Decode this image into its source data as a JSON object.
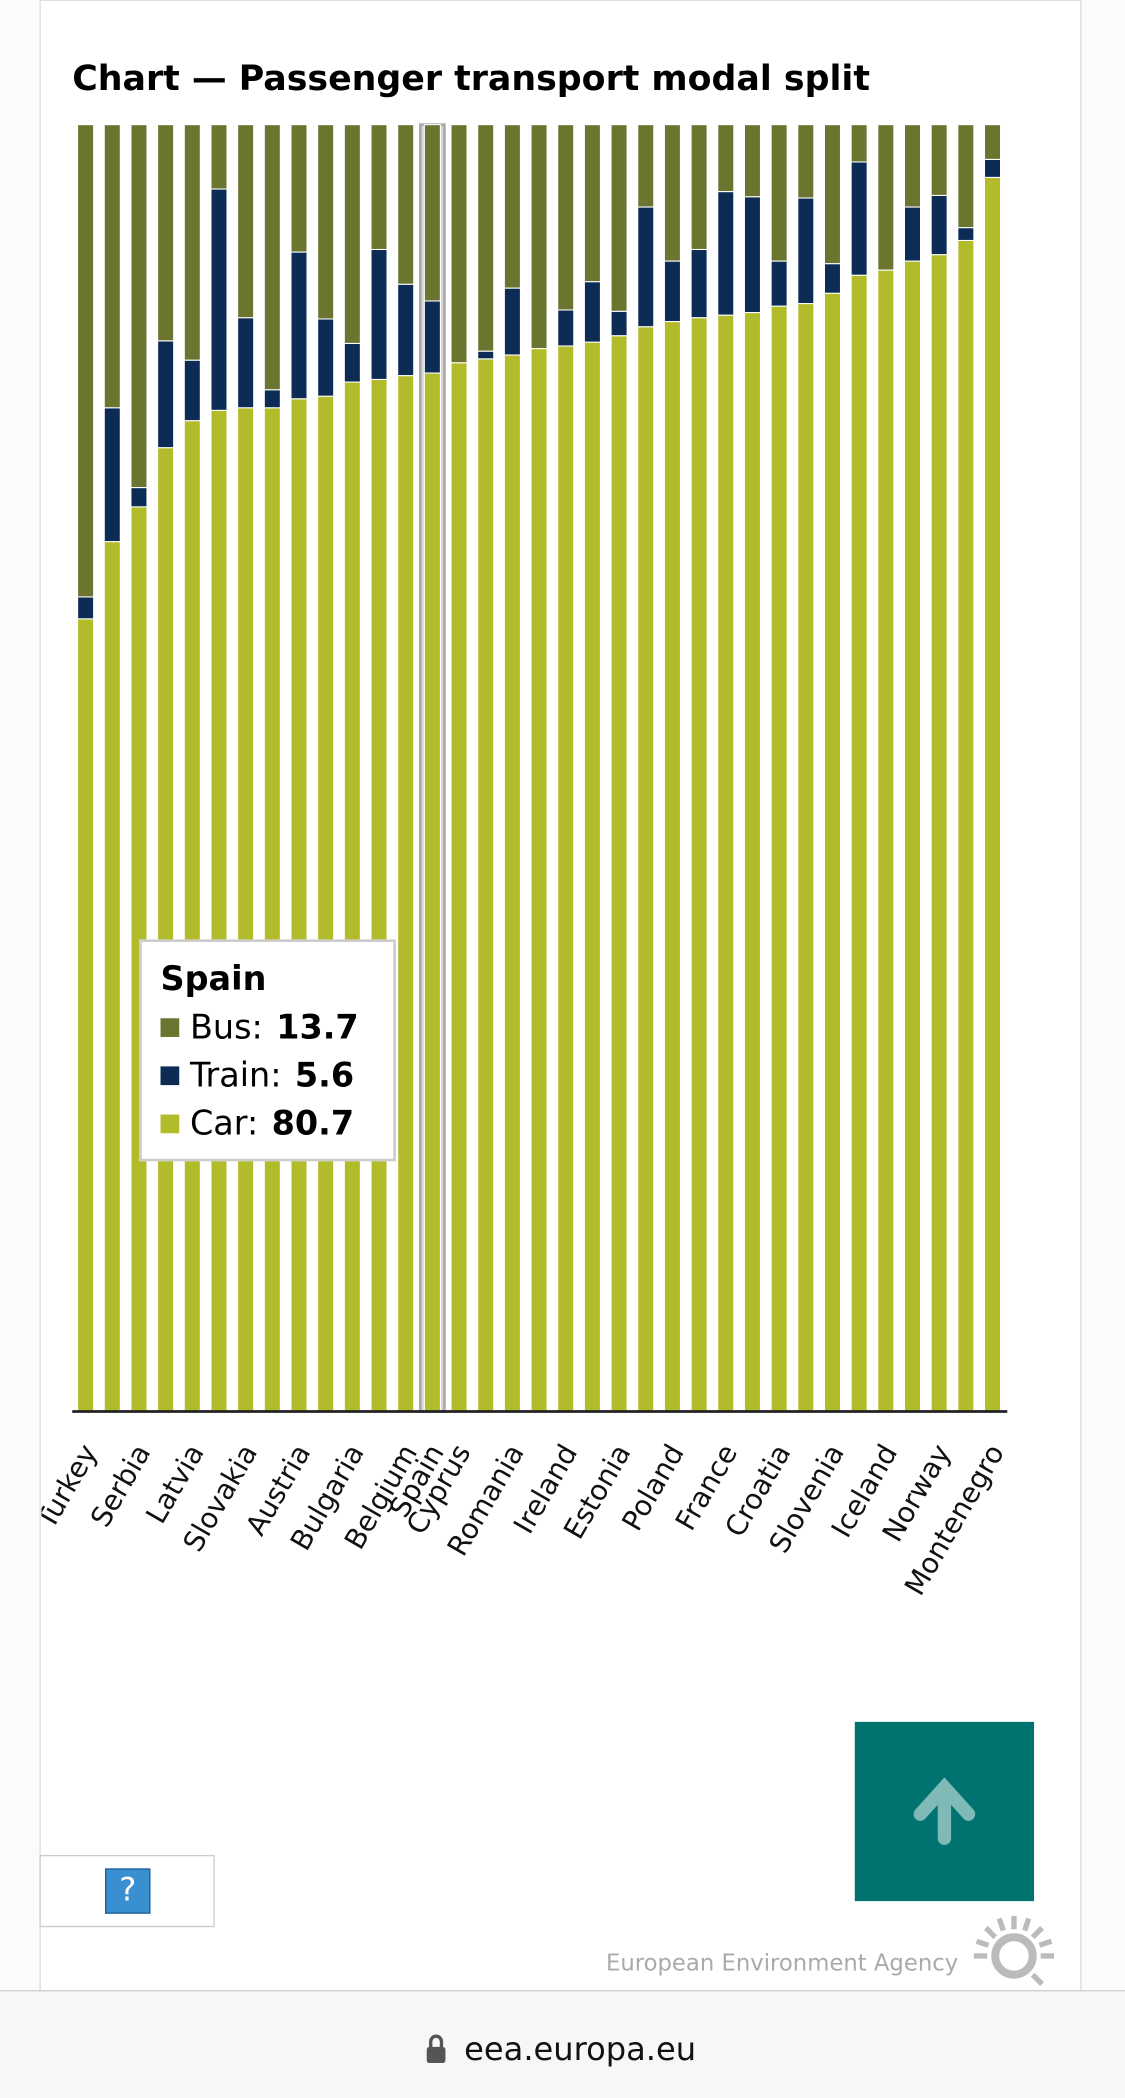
{
  "chart_data": {
    "type": "stacked_bar",
    "title": "Chart — Passenger transport modal split",
    "categories": [
      "Turkey",
      null,
      "Serbia",
      null,
      "Latvia",
      null,
      "Slovakia",
      null,
      "Austria",
      null,
      "Bulgaria",
      null,
      "Belgium",
      "Spain",
      "Cyprus",
      null,
      "Romania",
      null,
      "Ireland",
      null,
      "Estonia",
      null,
      "Poland",
      null,
      "France",
      null,
      "Croatia",
      null,
      "Slovenia",
      null,
      "Iceland",
      null,
      "Norway",
      null,
      "Montenegro"
    ],
    "series": [
      {
        "name": "Bus",
        "color": "#6b7530",
        "values": [
          36.7,
          22.0,
          28.2,
          16.8,
          18.3,
          5.0,
          15.0,
          20.6,
          9.9,
          15.1,
          17.0,
          9.7,
          12.4,
          13.7,
          18.5,
          17.6,
          12.7,
          17.4,
          14.4,
          12.2,
          14.5,
          6.4,
          10.6,
          9.7,
          5.2,
          5.6,
          10.6,
          5.7,
          10.8,
          2.9,
          11.3,
          6.4,
          5.5,
          8.0,
          2.7
        ]
      },
      {
        "name": "Train",
        "color": "#0c2c55",
        "values": [
          1.7,
          10.4,
          1.5,
          8.3,
          4.7,
          17.2,
          7.0,
          1.4,
          11.4,
          6.0,
          3.0,
          10.1,
          7.1,
          5.6,
          0,
          0.6,
          5.2,
          0,
          2.8,
          4.7,
          1.9,
          9.3,
          4.7,
          5.3,
          9.6,
          9.0,
          3.5,
          8.2,
          2.3,
          8.8,
          0,
          4.2,
          4.6,
          1.0,
          1.4
        ]
      },
      {
        "name": "Car",
        "color": "#b2bb2a",
        "values": [
          61.6,
          67.6,
          70.3,
          74.9,
          77.0,
          77.8,
          78.0,
          78.0,
          78.7,
          78.9,
          80.0,
          80.2,
          80.5,
          80.7,
          81.5,
          81.8,
          82.1,
          82.6,
          82.8,
          83.1,
          83.6,
          84.3,
          84.7,
          85.0,
          85.2,
          85.4,
          85.9,
          86.1,
          86.9,
          88.3,
          88.7,
          89.4,
          89.9,
          91.0,
          95.9
        ]
      }
    ],
    "ylim": [
      0,
      100
    ],
    "highlight": 13
  },
  "page": {
    "help": "?",
    "agency": "European Environment Agency",
    "url": "eea.europa.eu"
  }
}
